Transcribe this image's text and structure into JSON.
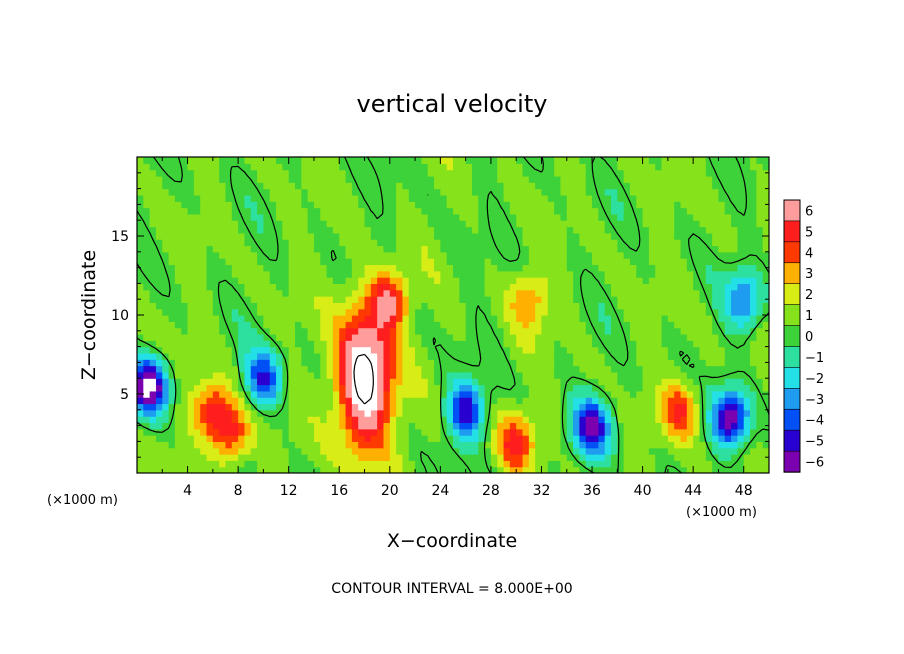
{
  "chart_data": {
    "type": "heatmap",
    "title": "vertical velocity",
    "xlabel": "X−coordinate",
    "ylabel": "Z−coordinate",
    "x_units": "(×1000 m)",
    "x_units_right": "(×1000 m)",
    "xlim": [
      0,
      50
    ],
    "ylim": [
      0,
      20
    ],
    "x_ticks": [
      4,
      8,
      12,
      16,
      20,
      24,
      28,
      32,
      36,
      40,
      44,
      48
    ],
    "y_ticks": [
      5,
      10,
      15
    ],
    "colorbar": {
      "min": -6,
      "max": 6,
      "ticks": [
        "6",
        "5",
        "4",
        "3",
        "2",
        "1",
        "0",
        "−1",
        "−2",
        "−3",
        "−4",
        "−5",
        "−6"
      ]
    },
    "contour_interval_text": "CONTOUR INTERVAL = 8.000E+00",
    "features": [
      {
        "x": 18,
        "z": 6,
        "w": 8.6,
        "kind": "updraft core"
      },
      {
        "x": 20,
        "z": 11,
        "w": 4.5,
        "kind": "updraft"
      },
      {
        "x": 6,
        "z": 4,
        "w": 4.5,
        "kind": "updraft"
      },
      {
        "x": 7.5,
        "z": 2.5,
        "w": 4.5,
        "kind": "updraft"
      },
      {
        "x": 30,
        "z": 2,
        "w": 4,
        "kind": "updraft"
      },
      {
        "x": 31,
        "z": 11,
        "w": 3,
        "kind": "updraft"
      },
      {
        "x": 43,
        "z": 4,
        "w": 4,
        "kind": "updraft"
      },
      {
        "x": 1,
        "z": 5.5,
        "w": -7.5,
        "kind": "downdraft"
      },
      {
        "x": 10,
        "z": 6,
        "w": -5,
        "kind": "downdraft"
      },
      {
        "x": 26,
        "z": 4,
        "w": -5.5,
        "kind": "downdraft"
      },
      {
        "x": 36,
        "z": 3,
        "w": -6,
        "kind": "downdraft"
      },
      {
        "x": 47,
        "z": 3.5,
        "w": -6.5,
        "kind": "downdraft"
      },
      {
        "x": 48,
        "z": 11,
        "w": -4,
        "kind": "downdraft"
      }
    ]
  }
}
